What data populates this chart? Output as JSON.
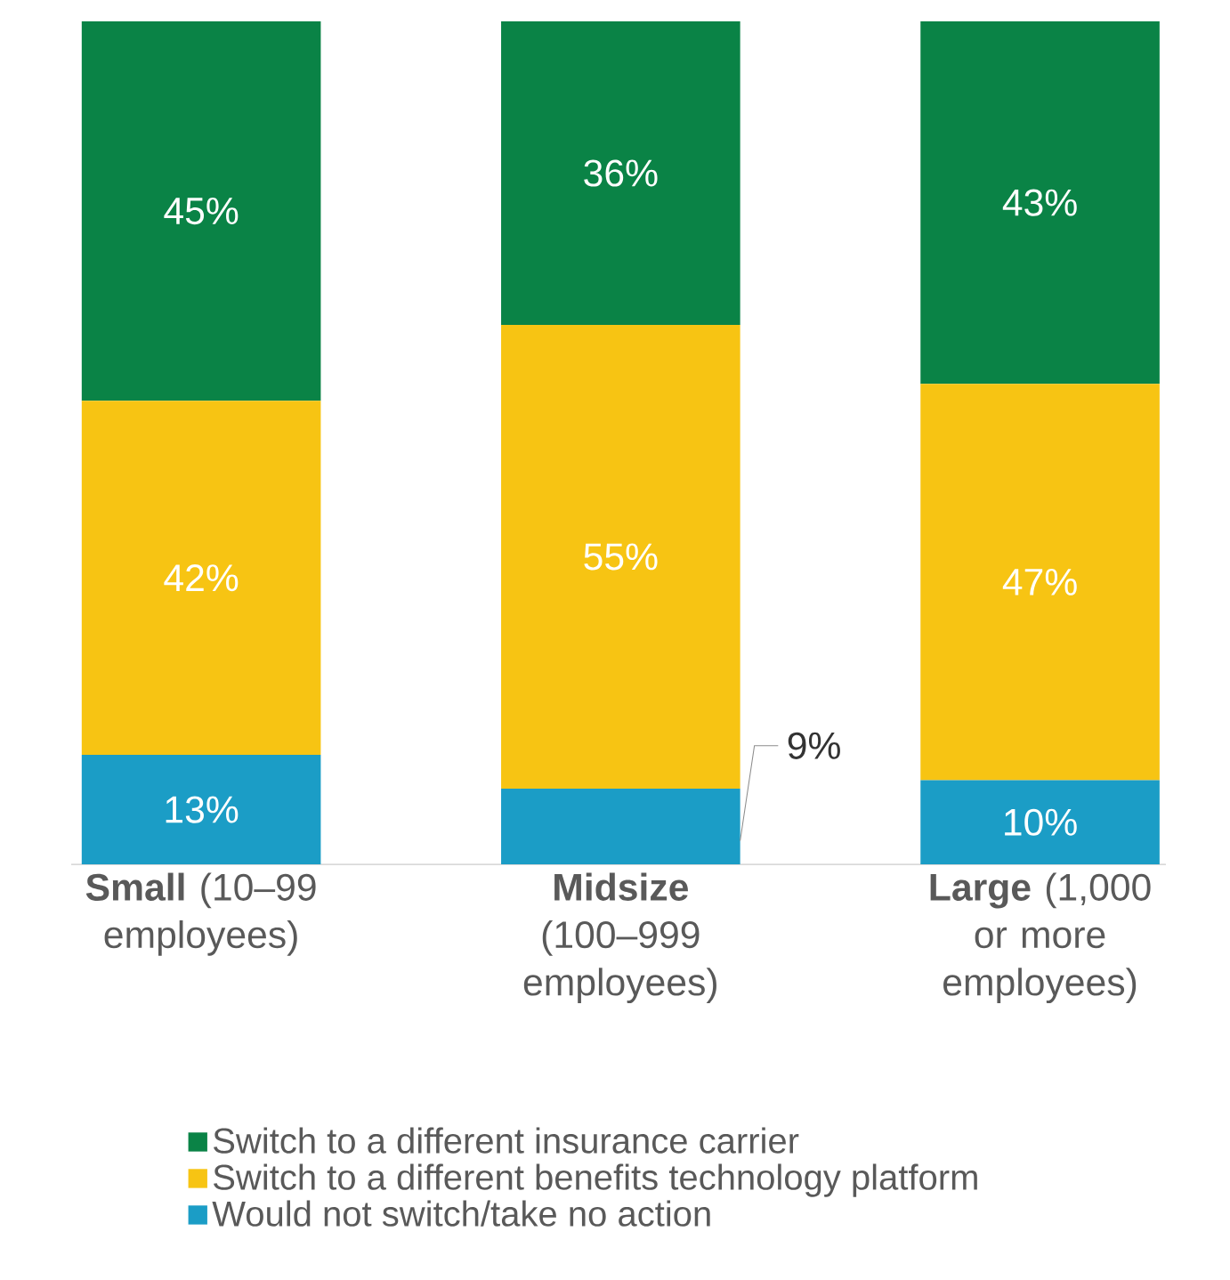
{
  "chart_data": {
    "type": "bar",
    "stacked": true,
    "legend": "bottom",
    "categories": [
      "**Small** (10–99 employees)",
      "**Midsize** (100–999 employees)",
      "**Large** (1,000 or more employees)"
    ],
    "series": [
      {
        "name": "Would not switch/take no action",
        "color": "#1b9dc6",
        "values": [
          13,
          9,
          10
        ],
        "value_labels": [
          "13%",
          "9%",
          "10%"
        ]
      },
      {
        "name": "Switch to a different benefits technology platform",
        "color": "#f7c413",
        "values": [
          42,
          55,
          47
        ],
        "value_labels": [
          "42%",
          "55%",
          "47%"
        ]
      },
      {
        "name": "Switch to a different insurance carrier",
        "color": "#0a8346",
        "values": [
          45,
          36,
          43
        ],
        "value_labels": [
          "45%",
          "36%",
          "43%"
        ]
      }
    ]
  }
}
